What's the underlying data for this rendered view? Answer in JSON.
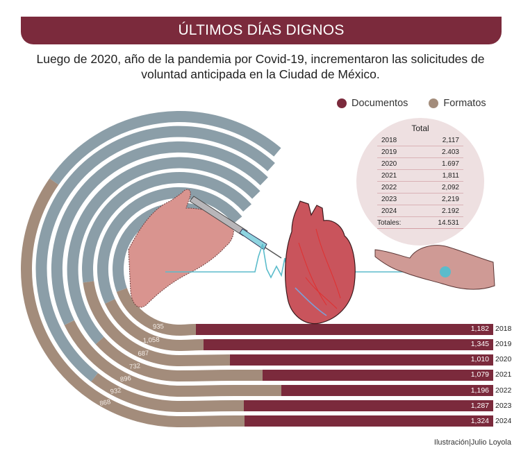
{
  "header": {
    "title": "ÚLTIMOS DÍAS DIGNOS",
    "subtitle_line1": "Luego de 2020, año de la pandemia por Covid-19, incrementaron las solicitudes de",
    "subtitle_line2": "voluntad anticipada en la Ciudad de México."
  },
  "legend": {
    "documentos": {
      "label": "Documentos",
      "color": "#7b2a3c"
    },
    "formatos": {
      "label": "Formatos",
      "color": "#a38c7b"
    }
  },
  "colors": {
    "documentos": "#7b2a3c",
    "formatos": "#a38c7b",
    "ring_track": "#8b9ea8",
    "ecg_line": "#5bbccb",
    "total_bg": "#eee0e1"
  },
  "totals_table": {
    "title": "Total",
    "rows": [
      {
        "year": "2018",
        "value": "2,117"
      },
      {
        "year": "2019",
        "value": "2.403"
      },
      {
        "year": "2020",
        "value": "1.697"
      },
      {
        "year": "2021",
        "value": "1,811"
      },
      {
        "year": "2022",
        "value": "2,092"
      },
      {
        "year": "2023",
        "value": "2,219"
      },
      {
        "year": "2024",
        "value": "2.192"
      }
    ],
    "sum_label": "Totales:",
    "sum_value": "14.531"
  },
  "bars": [
    {
      "year": "2018",
      "documentos": "1,182",
      "formatos": "935"
    },
    {
      "year": "2019",
      "documentos": "1,345",
      "formatos": "1,058"
    },
    {
      "year": "2020",
      "documentos": "1,010",
      "formatos": "687"
    },
    {
      "year": "2021",
      "documentos": "1,079",
      "formatos": "732"
    },
    {
      "year": "2022",
      "documentos": "1,196",
      "formatos": "896"
    },
    {
      "year": "2023",
      "documentos": "1,287",
      "formatos": "932"
    },
    {
      "year": "2024",
      "documentos": "1,324",
      "formatos": "868"
    }
  ],
  "credit": "Ilustración|Julio Loyola",
  "chart_data": {
    "type": "bar",
    "title": "ÚLTIMOS DÍAS DIGNOS",
    "subtitle": "Luego de 2020, año de la pandemia por Covid-19, incrementaron las solicitudes de voluntad anticipada en la Ciudad de México.",
    "categories": [
      "2018",
      "2019",
      "2020",
      "2021",
      "2022",
      "2023",
      "2024"
    ],
    "series": [
      {
        "name": "Documentos",
        "color": "#7b2a3c",
        "values": [
          1182,
          1345,
          1010,
          1079,
          1196,
          1287,
          1324
        ]
      },
      {
        "name": "Formatos",
        "color": "#a38c7b",
        "values": [
          935,
          1058,
          687,
          732,
          896,
          932,
          868
        ]
      }
    ],
    "totals": {
      "2018": 2117,
      "2019": 2403,
      "2020": 1697,
      "2021": 1811,
      "2022": 2092,
      "2023": 2219,
      "2024": 2192
    },
    "grand_total": 14531,
    "stacked": true,
    "layout": "radial-to-horizontal stacked bars (spiral rings becoming horizontal bars)",
    "legend_position": "top-right",
    "grid": false,
    "xlabel": "",
    "ylabel": "",
    "source_credit": "Ilustración|Julio Loyola"
  }
}
